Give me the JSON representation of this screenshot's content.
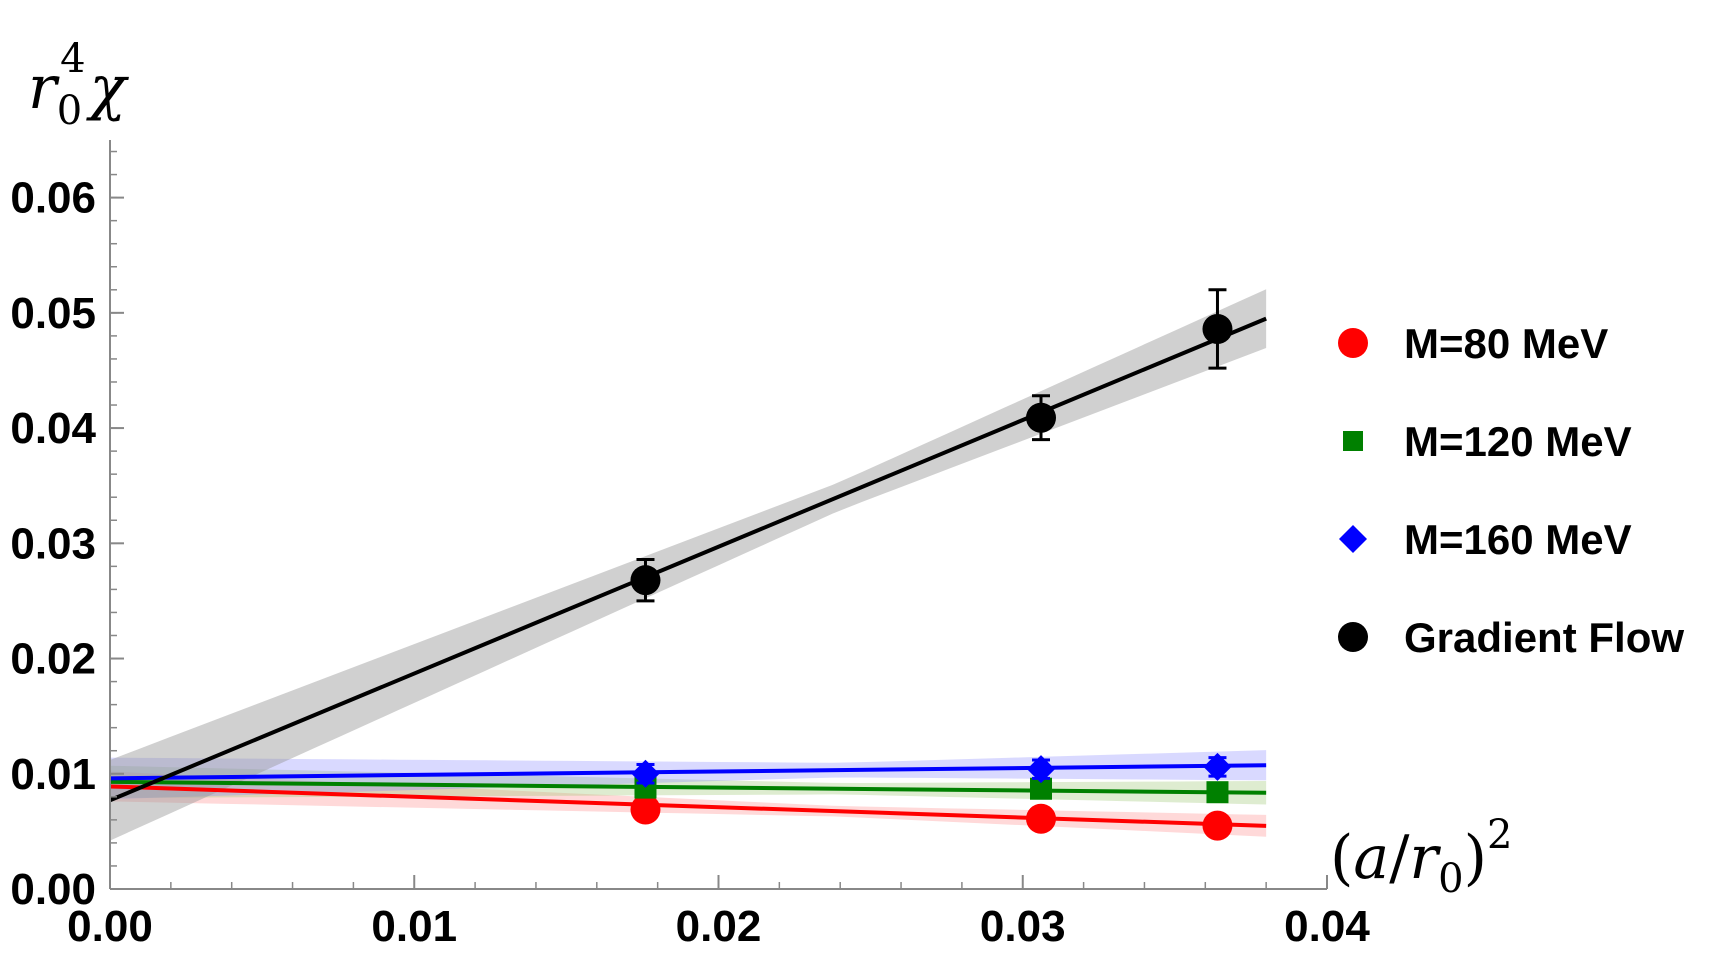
{
  "chart_data": {
    "type": "scatter",
    "title": "",
    "xlabel": "(a/r0)^2",
    "ylabel": "r0^4 χ",
    "xlim": [
      0.0,
      0.04
    ],
    "ylim": [
      0.0,
      0.065
    ],
    "grid": false,
    "legend_position": "right",
    "x_ticks": [
      "0.00",
      "0.01",
      "0.02",
      "0.03",
      "0.04"
    ],
    "y_ticks": [
      "0.00",
      "0.01",
      "0.02",
      "0.03",
      "0.04",
      "0.05",
      "0.06"
    ],
    "series": [
      {
        "name": "M=80 MeV",
        "marker": "circle",
        "color": "#ff0000",
        "x": [
          0.0176,
          0.0306,
          0.0364
        ],
        "y": [
          0.0069,
          0.0061,
          0.0055
        ],
        "err": [
          0.0006,
          0.0005,
          0.0005
        ],
        "fit": {
          "intercept": 0.0089,
          "slope": -0.09,
          "x_end": 0.038,
          "band_width": 0.0013
        }
      },
      {
        "name": "M=120 MeV",
        "marker": "square",
        "color": "#008000",
        "x": [
          0.0176,
          0.0306,
          0.0364
        ],
        "y": [
          0.0088,
          0.0087,
          0.0084
        ],
        "err": [
          0.0006,
          0.0005,
          0.0005
        ],
        "fit": {
          "intercept": 0.0093,
          "slope": -0.025,
          "x_end": 0.038,
          "band_width": 0.0014
        }
      },
      {
        "name": "M=160 MeV",
        "marker": "diamond",
        "color": "#0000ff",
        "x": [
          0.0176,
          0.0306,
          0.0364
        ],
        "y": [
          0.01,
          0.0104,
          0.0106
        ],
        "err": [
          0.0008,
          0.0008,
          0.0008
        ],
        "fit": {
          "intercept": 0.0096,
          "slope": 0.03,
          "x_end": 0.038,
          "band_width": 0.0018
        }
      },
      {
        "name": "Gradient Flow",
        "marker": "circle",
        "color": "#000000",
        "x": [
          0.0176,
          0.0306,
          0.0364
        ],
        "y": [
          0.0268,
          0.0409,
          0.0486
        ],
        "err": [
          0.0018,
          0.0019,
          0.0034
        ],
        "fit": {
          "intercept": 0.0077,
          "slope": 1.1,
          "x_end": 0.038,
          "band_width": 0.0035
        }
      }
    ]
  }
}
